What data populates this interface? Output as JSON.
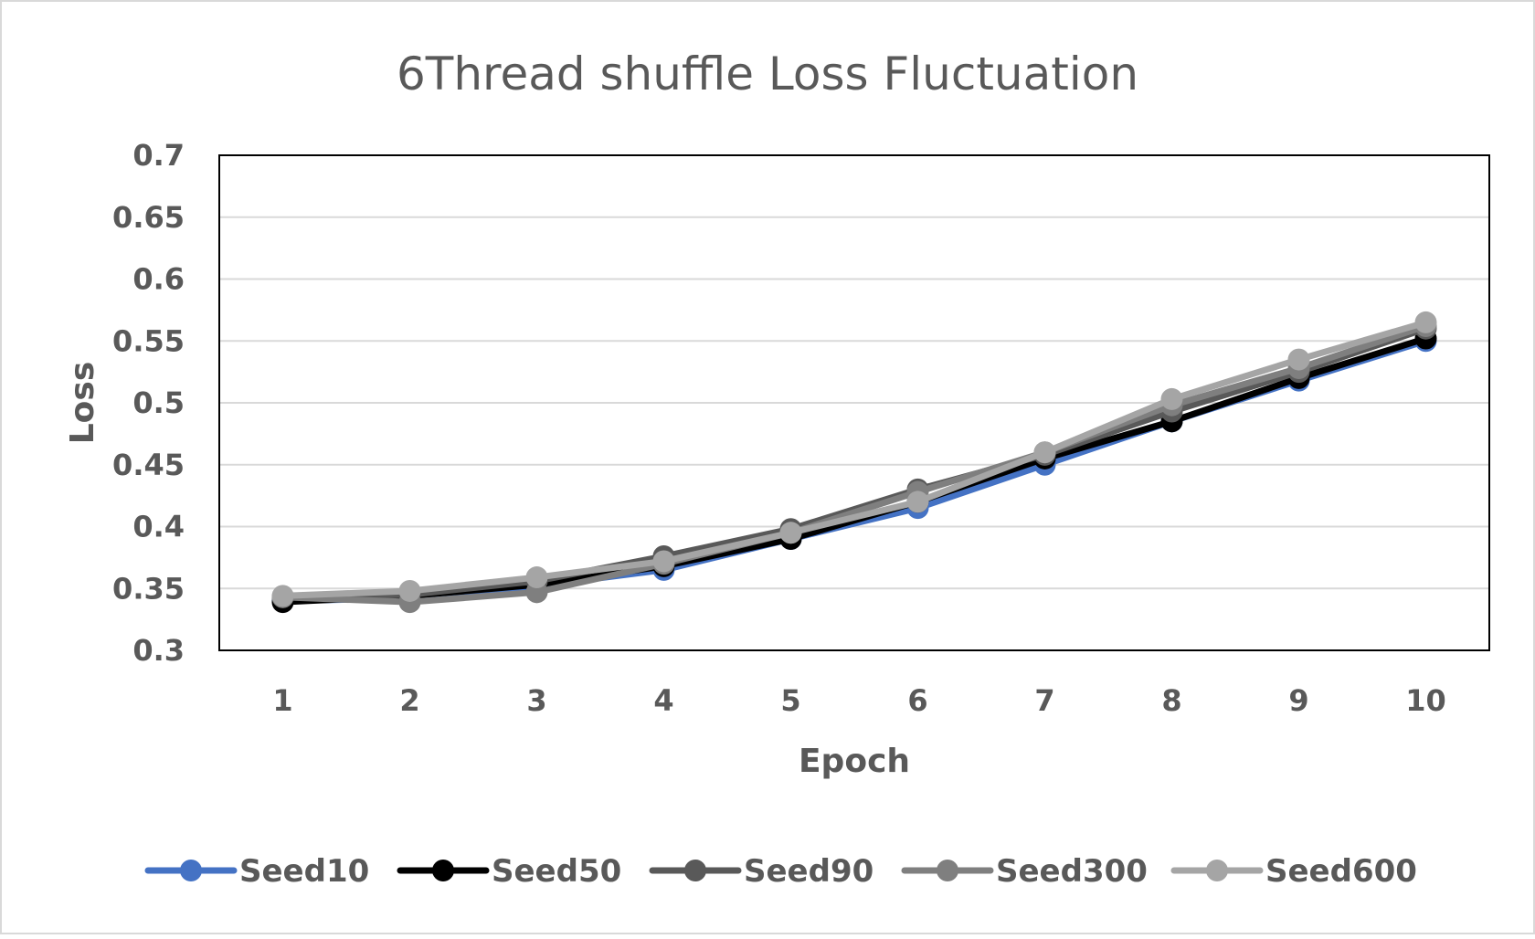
{
  "chart_data": {
    "type": "line",
    "title": "6Thread shuffle Loss Fluctuation",
    "xlabel": "Epoch",
    "ylabel": "Loss",
    "categories": [
      "1",
      "2",
      "3",
      "4",
      "5",
      "6",
      "7",
      "8",
      "9",
      "10"
    ],
    "ylim": [
      0.3,
      0.7
    ],
    "yticks": [
      "0.3",
      "0.35",
      "0.4",
      "0.45",
      "0.5",
      "0.55",
      "0.6",
      "0.65",
      "0.7"
    ],
    "grid": true,
    "legend": "bottom",
    "series": [
      {
        "name": "Seed10",
        "color": "#4472C4",
        "values": [
          0.34,
          0.342,
          0.352,
          0.365,
          0.39,
          0.415,
          0.45,
          0.485,
          0.518,
          0.55
        ]
      },
      {
        "name": "Seed50",
        "color": "#000000",
        "values": [
          0.339,
          0.344,
          0.353,
          0.368,
          0.39,
          0.42,
          0.455,
          0.485,
          0.52,
          0.552
        ]
      },
      {
        "name": "Seed90",
        "color": "#595959",
        "values": [
          0.343,
          0.345,
          0.356,
          0.376,
          0.398,
          0.43,
          0.458,
          0.493,
          0.525,
          0.56
        ]
      },
      {
        "name": "Seed300",
        "color": "#7F7F7F",
        "values": [
          0.343,
          0.339,
          0.347,
          0.37,
          0.395,
          0.428,
          0.46,
          0.498,
          0.528,
          0.562
        ]
      },
      {
        "name": "Seed600",
        "color": "#A5A5A5",
        "values": [
          0.344,
          0.348,
          0.359,
          0.372,
          0.395,
          0.42,
          0.46,
          0.503,
          0.535,
          0.565
        ]
      }
    ]
  }
}
